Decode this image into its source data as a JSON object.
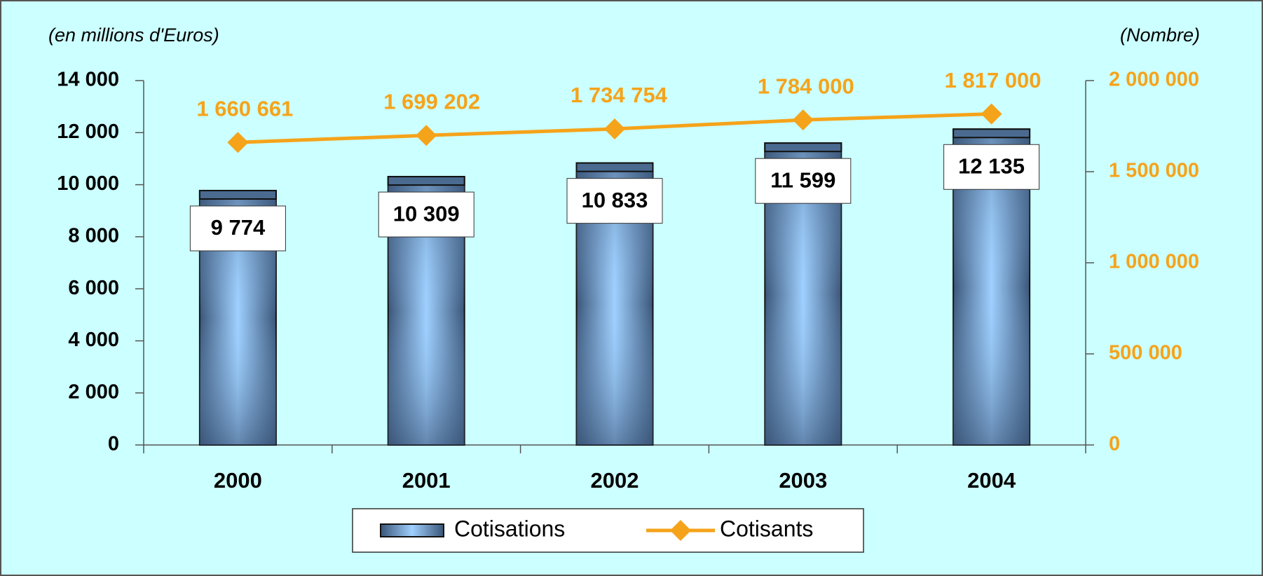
{
  "chart_data": {
    "type": "bar",
    "y_label": "(en millions d'Euros)",
    "y2_label": "(Nombre)",
    "categories": [
      "2000",
      "2001",
      "2002",
      "2003",
      "2004"
    ],
    "series": [
      {
        "name": "Cotisations",
        "type": "bar",
        "color": "#4a6a90",
        "values": [
          9774,
          10309,
          10833,
          11599,
          12135
        ],
        "value_labels": [
          "9 774",
          "10 309",
          "10 833",
          "11 599",
          "12 135"
        ]
      },
      {
        "name": "Cotisants",
        "type": "line",
        "axis": "y2",
        "color": "#f5a31a",
        "values": [
          1660661,
          1699202,
          1734754,
          1784000,
          1817000
        ],
        "value_labels": [
          "1 660 661",
          "1 699 202",
          "1 734 754",
          "1 784 000",
          "1 817 000"
        ]
      }
    ],
    "ylim": [
      0,
      14000
    ],
    "yticks": [
      {
        "value": 0,
        "label": "0"
      },
      {
        "value": 2000,
        "label": "2 000"
      },
      {
        "value": 4000,
        "label": "4 000"
      },
      {
        "value": 6000,
        "label": "6 000"
      },
      {
        "value": 8000,
        "label": "8 000"
      },
      {
        "value": 10000,
        "label": "10 000"
      },
      {
        "value": 12000,
        "label": "12 000"
      },
      {
        "value": 14000,
        "label": "14 000"
      }
    ],
    "y2lim": [
      0,
      2000000
    ],
    "y2ticks": [
      {
        "value": 0,
        "label": "0"
      },
      {
        "value": 500000,
        "label": "500 000"
      },
      {
        "value": 1000000,
        "label": "1 000 000"
      },
      {
        "value": 1500000,
        "label": "1 500 000"
      },
      {
        "value": 2000000,
        "label": "2 000 000"
      }
    ],
    "legend": "bottom"
  }
}
